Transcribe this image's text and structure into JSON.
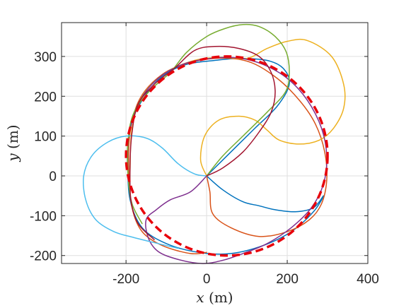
{
  "chart_data": {
    "type": "line",
    "title": "",
    "xlabel": {
      "var": "x",
      "unit": " (m)"
    },
    "ylabel": {
      "var": "y",
      "unit": " (m)"
    },
    "xlim": [
      -360,
      400
    ],
    "ylim": [
      -220,
      385
    ],
    "xticks": [
      -200,
      0,
      200,
      400
    ],
    "xtick_labels": [
      "-200",
      "0",
      "200",
      "400"
    ],
    "yticks": [
      -200,
      -100,
      0,
      100,
      200,
      300
    ],
    "ytick_labels": [
      "-200",
      "-100",
      "0",
      "100",
      "200",
      "300"
    ],
    "grid": true,
    "legend": "none",
    "reference_circle": {
      "center": [
        50,
        50
      ],
      "radius": 250,
      "color": "#e8000b",
      "style": "dashed"
    },
    "series": [
      {
        "color": "#0072bd",
        "points": [
          [
            0,
            0
          ],
          [
            60,
            60
          ],
          [
            120,
            120
          ],
          [
            175,
            175
          ],
          [
            205,
            230
          ],
          [
            190,
            270
          ],
          [
            150,
            290
          ],
          [
            80,
            295
          ],
          [
            20,
            290
          ],
          [
            -50,
            280
          ],
          [
            -110,
            250
          ],
          [
            -160,
            190
          ],
          [
            -190,
            120
          ],
          [
            -195,
            30
          ],
          [
            -190,
            -60
          ],
          [
            -160,
            -130
          ],
          [
            -100,
            -170
          ],
          [
            -20,
            -192
          ],
          [
            60,
            -195
          ],
          [
            140,
            -175
          ],
          [
            210,
            -140
          ],
          [
            265,
            -90
          ],
          [
            290,
            -50
          ],
          [
            265,
            -80
          ],
          [
            220,
            -90
          ],
          [
            170,
            -85
          ],
          [
            130,
            -75
          ],
          [
            90,
            -65
          ],
          [
            40,
            -35
          ],
          [
            0,
            0
          ]
        ]
      },
      {
        "color": "#d95319",
        "points": [
          [
            0,
            0
          ],
          [
            8,
            -40
          ],
          [
            15,
            -95
          ],
          [
            60,
            -130
          ],
          [
            130,
            -152
          ],
          [
            200,
            -140
          ],
          [
            255,
            -110
          ],
          [
            285,
            -70
          ],
          [
            298,
            -10
          ],
          [
            293,
            60
          ],
          [
            270,
            130
          ],
          [
            230,
            190
          ],
          [
            175,
            245
          ],
          [
            110,
            285
          ],
          [
            40,
            296
          ],
          [
            -40,
            285
          ],
          [
            -110,
            255
          ],
          [
            -165,
            195
          ],
          [
            -190,
            110
          ],
          [
            -193,
            10
          ],
          [
            -185,
            -80
          ],
          [
            -160,
            -140
          ],
          [
            -110,
            -175
          ],
          [
            -40,
            -195
          ],
          [
            0,
            -192
          ]
        ]
      },
      {
        "color": "#edb120",
        "points": [
          [
            0,
            0
          ],
          [
            -15,
            40
          ],
          [
            -5,
            100
          ],
          [
            30,
            140
          ],
          [
            80,
            150
          ],
          [
            120,
            140
          ],
          [
            150,
            115
          ],
          [
            180,
            90
          ],
          [
            230,
            80
          ],
          [
            280,
            90
          ],
          [
            315,
            120
          ],
          [
            340,
            170
          ],
          [
            340,
            230
          ],
          [
            310,
            300
          ],
          [
            250,
            340
          ],
          [
            200,
            338
          ],
          [
            150,
            320
          ],
          [
            100,
            295
          ],
          [
            40,
            298
          ],
          [
            -30,
            290
          ],
          [
            -100,
            260
          ],
          [
            -160,
            200
          ],
          [
            -185,
            120
          ],
          [
            -190,
            20
          ],
          [
            -190,
            -40
          ]
        ]
      },
      {
        "color": "#7e2f8e",
        "points": [
          [
            0,
            0
          ],
          [
            -40,
            -40
          ],
          [
            -90,
            -60
          ],
          [
            -125,
            -85
          ],
          [
            -150,
            -110
          ],
          [
            -145,
            -155
          ],
          [
            -120,
            -190
          ],
          [
            -70,
            -210
          ],
          [
            -10,
            -220
          ],
          [
            40,
            -212
          ],
          [
            90,
            -195
          ],
          [
            150,
            -170
          ],
          [
            210,
            -130
          ],
          [
            260,
            -80
          ],
          [
            290,
            -20
          ],
          [
            298,
            50
          ],
          [
            285,
            120
          ],
          [
            250,
            190
          ],
          [
            200,
            245
          ],
          [
            140,
            280
          ],
          [
            80,
            296
          ],
          [
            10,
            295
          ],
          [
            -60,
            280
          ],
          [
            -120,
            245
          ],
          [
            -165,
            190
          ],
          [
            -190,
            120
          ]
        ]
      },
      {
        "color": "#77ac30",
        "points": [
          [
            0,
            0
          ],
          [
            40,
            50
          ],
          [
            90,
            100
          ],
          [
            150,
            160
          ],
          [
            195,
            210
          ],
          [
            205,
            255
          ],
          [
            198,
            310
          ],
          [
            170,
            350
          ],
          [
            130,
            375
          ],
          [
            90,
            380
          ],
          [
            45,
            370
          ],
          [
            0,
            350
          ],
          [
            -50,
            310
          ],
          [
            -90,
            260
          ],
          [
            -140,
            215
          ],
          [
            -180,
            160
          ],
          [
            -195,
            90
          ],
          [
            -195,
            0
          ],
          [
            -185,
            -70
          ],
          [
            -160,
            -120
          ]
        ]
      },
      {
        "color": "#4dbeee",
        "points": [
          [
            0,
            0
          ],
          [
            -30,
            5
          ],
          [
            -70,
            30
          ],
          [
            -110,
            70
          ],
          [
            -150,
            95
          ],
          [
            -200,
            100
          ],
          [
            -245,
            85
          ],
          [
            -285,
            50
          ],
          [
            -305,
            0
          ],
          [
            -300,
            -60
          ],
          [
            -275,
            -110
          ],
          [
            -230,
            -140
          ],
          [
            -180,
            -155
          ],
          [
            -120,
            -170
          ],
          [
            -70,
            -182
          ]
        ]
      },
      {
        "color": "#a2142f",
        "points": [
          [
            0,
            0
          ],
          [
            40,
            20
          ],
          [
            90,
            60
          ],
          [
            130,
            110
          ],
          [
            160,
            160
          ],
          [
            170,
            210
          ],
          [
            160,
            260
          ],
          [
            130,
            300
          ],
          [
            80,
            320
          ],
          [
            20,
            325
          ],
          [
            -30,
            315
          ],
          [
            -80,
            270
          ],
          [
            -130,
            230
          ],
          [
            -170,
            180
          ],
          [
            -185,
            110
          ],
          [
            -190,
            30
          ],
          [
            -188,
            -60
          ],
          [
            -170,
            -120
          ],
          [
            -130,
            -160
          ]
        ]
      }
    ]
  }
}
